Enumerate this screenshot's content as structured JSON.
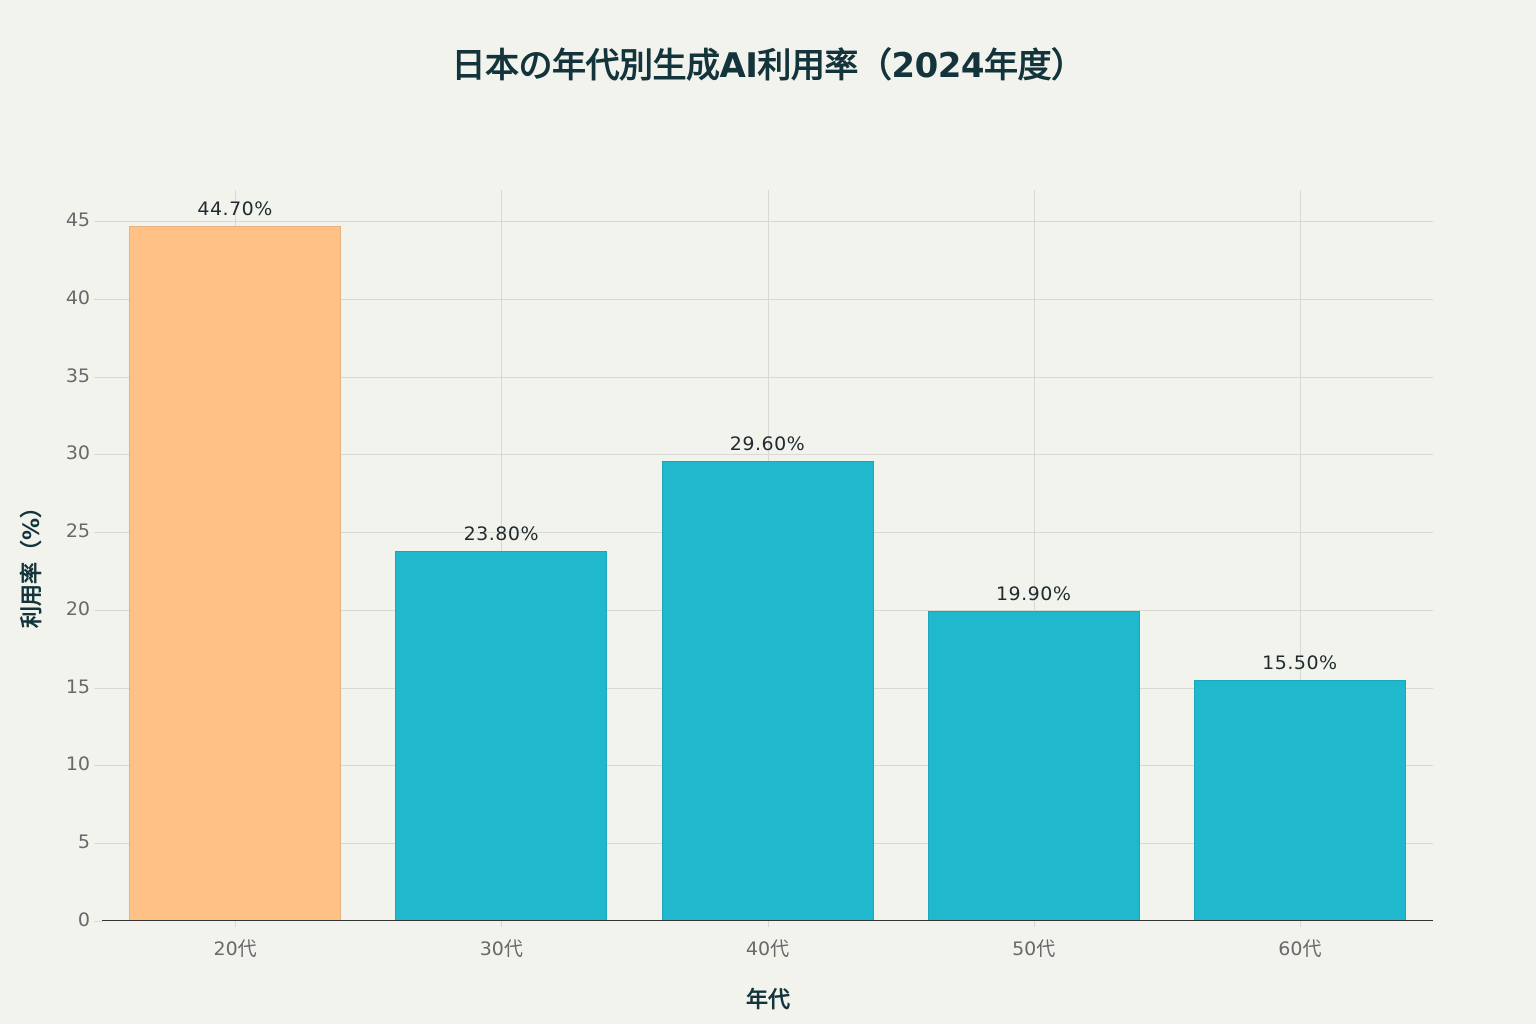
{
  "chart": {
    "title": "日本の年代別生成AI利用率（2024年度）",
    "xlabel": "年代",
    "ylabel": "利用率（%）",
    "y_ticks": [
      "0",
      "5",
      "10",
      "15",
      "20",
      "25",
      "30",
      "35",
      "40",
      "45"
    ],
    "categories": [
      "20代",
      "30代",
      "40代",
      "50代",
      "60代"
    ],
    "bar_labels": [
      "44.70%",
      "23.80%",
      "29.60%",
      "19.90%",
      "15.50%"
    ]
  },
  "colors": {
    "highlight": "#ffc185",
    "default": "#1fb8cd",
    "background": "#f3f3ee",
    "title": "#13343b"
  },
  "chart_data": {
    "type": "bar",
    "title": "日本の年代別生成AI利用率（2024年度）",
    "xlabel": "年代",
    "ylabel": "利用率（%）",
    "categories": [
      "20代",
      "30代",
      "40代",
      "50代",
      "60代"
    ],
    "values": [
      44.7,
      23.8,
      29.6,
      19.9,
      15.5
    ],
    "value_labels": [
      "44.70%",
      "23.80%",
      "29.60%",
      "19.90%",
      "15.50%"
    ],
    "bar_colors": [
      "#ffc185",
      "#1fb8cd",
      "#1fb8cd",
      "#1fb8cd",
      "#1fb8cd"
    ],
    "ylim": [
      0,
      47
    ],
    "y_ticks": [
      0,
      5,
      10,
      15,
      20,
      25,
      30,
      35,
      40,
      45
    ],
    "grid": true,
    "legend": "none"
  }
}
